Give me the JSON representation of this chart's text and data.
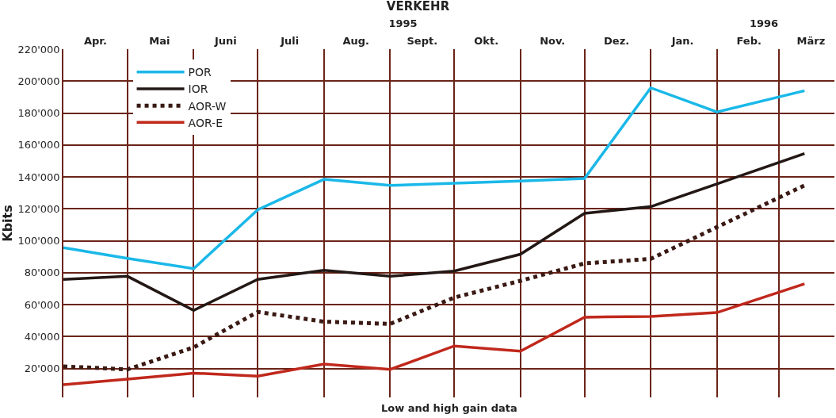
{
  "chart_data": {
    "type": "line",
    "title": "VERKEHR",
    "xlabel": "Low and high gain data",
    "ylabel": "Kbits",
    "x": [
      "1995-04-01",
      "1995-05-01",
      "1995-06-01",
      "1995-07-01",
      "1995-08-01",
      "1995-09-01",
      "1995-10-01",
      "1995-11-01",
      "1995-12-01",
      "1996-01-01",
      "1996-02-01",
      "1996-03-13"
    ],
    "series": [
      {
        "name": "POR",
        "color": "#1ab8e8",
        "line_style": "solid",
        "values": [
          95800,
          89000,
          82600,
          119500,
          138500,
          134700,
          136100,
          137500,
          139000,
          195800,
          180700,
          194000
        ]
      },
      {
        "name": "IOR",
        "color": "#231815",
        "line_style": "solid",
        "values": [
          75900,
          77800,
          56500,
          75900,
          81600,
          77800,
          81100,
          91600,
          117200,
          121400,
          135600,
          154600
        ]
      },
      {
        "name": "AOR-W",
        "color": "#3a1a14",
        "line_style": "dotted",
        "values": [
          21400,
          19500,
          33300,
          55500,
          49400,
          48000,
          64500,
          75000,
          85900,
          88700,
          108600,
          134700
        ]
      },
      {
        "name": "AOR-E",
        "color": "#c0281c",
        "line_style": "solid",
        "values": [
          10000,
          13400,
          17200,
          15300,
          22800,
          19500,
          34200,
          30900,
          52200,
          52700,
          55100,
          73100
        ]
      }
    ],
    "xlim": [
      "1995-04-01",
      "1996-03-27"
    ],
    "xticks": [
      {
        "value": "1995-04-16",
        "label": "Apr."
      },
      {
        "value": "1995-05-16",
        "label": "Mai"
      },
      {
        "value": "1995-06-16",
        "label": "Juni"
      },
      {
        "value": "1995-07-16",
        "label": "Juli"
      },
      {
        "value": "1995-08-16",
        "label": "Aug."
      },
      {
        "value": "1995-09-16",
        "label": "Sept."
      },
      {
        "value": "1995-10-16",
        "label": "Okt."
      },
      {
        "value": "1995-11-16",
        "label": "Nov."
      },
      {
        "value": "1995-12-16",
        "label": "Dez."
      },
      {
        "value": "1996-01-16",
        "label": "Jan."
      },
      {
        "value": "1996-02-16",
        "label": "Feb."
      },
      {
        "value": "1996-03-16",
        "label": "März"
      }
    ],
    "x2lim": [
      "1995-04-01",
      "1996-03-27"
    ],
    "x2ticks": [
      {
        "value": "1995-09-07",
        "label": "1995"
      },
      {
        "value": "1996-02-23",
        "label": "1996"
      }
    ],
    "ylim": [
      2000,
      220000
    ],
    "yticks": [
      {
        "value": 20000,
        "label": "20'000"
      },
      {
        "value": 40000,
        "label": "40'000"
      },
      {
        "value": 60000,
        "label": "60'000"
      },
      {
        "value": 80000,
        "label": "80'000"
      },
      {
        "value": 100000,
        "label": "100'000"
      },
      {
        "value": 120000,
        "label": "120'000"
      },
      {
        "value": 140000,
        "label": "140'000"
      },
      {
        "value": 160000,
        "label": "160'000"
      },
      {
        "value": 180000,
        "label": "180'000"
      },
      {
        "value": 200000,
        "label": "200'000"
      },
      {
        "value": 220000,
        "label": "220'000"
      }
    ],
    "grid": true,
    "legend": "top left",
    "marker": "none"
  }
}
